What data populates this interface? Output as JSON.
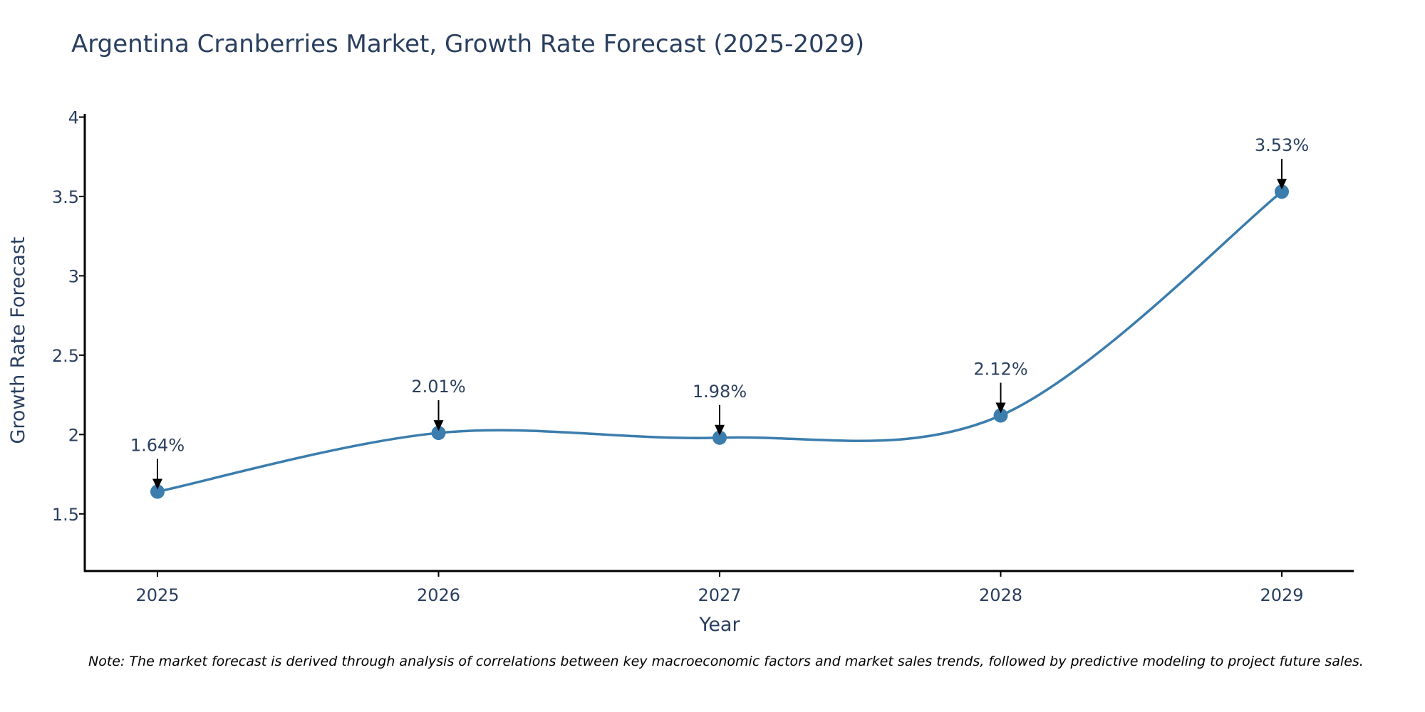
{
  "chart_data": {
    "type": "line",
    "title": "Argentina Cranberries Market, Growth Rate Forecast (2025-2029)",
    "xlabel": "Year",
    "ylabel": "Growth Rate Forecast",
    "categories": [
      "2025",
      "2026",
      "2027",
      "2028",
      "2029"
    ],
    "values": [
      1.64,
      2.01,
      1.98,
      2.12,
      3.53
    ],
    "data_labels": [
      "1.64%",
      "2.01%",
      "1.98%",
      "2.12%",
      "3.53%"
    ],
    "yticks": [
      1.5,
      2,
      2.5,
      3,
      3.5,
      4
    ],
    "ytick_labels": [
      "1.5",
      "2",
      "2.5",
      "3",
      "3.5",
      "4"
    ],
    "ylim": [
      1.14,
      4.02
    ],
    "grid": false,
    "line_shape": "spline",
    "color": "#3b7dad",
    "note": "Note: The market forecast is derived through analysis of correlations between key macroeconomic factors and market sales trends, followed by predictive modeling to project future sales."
  }
}
